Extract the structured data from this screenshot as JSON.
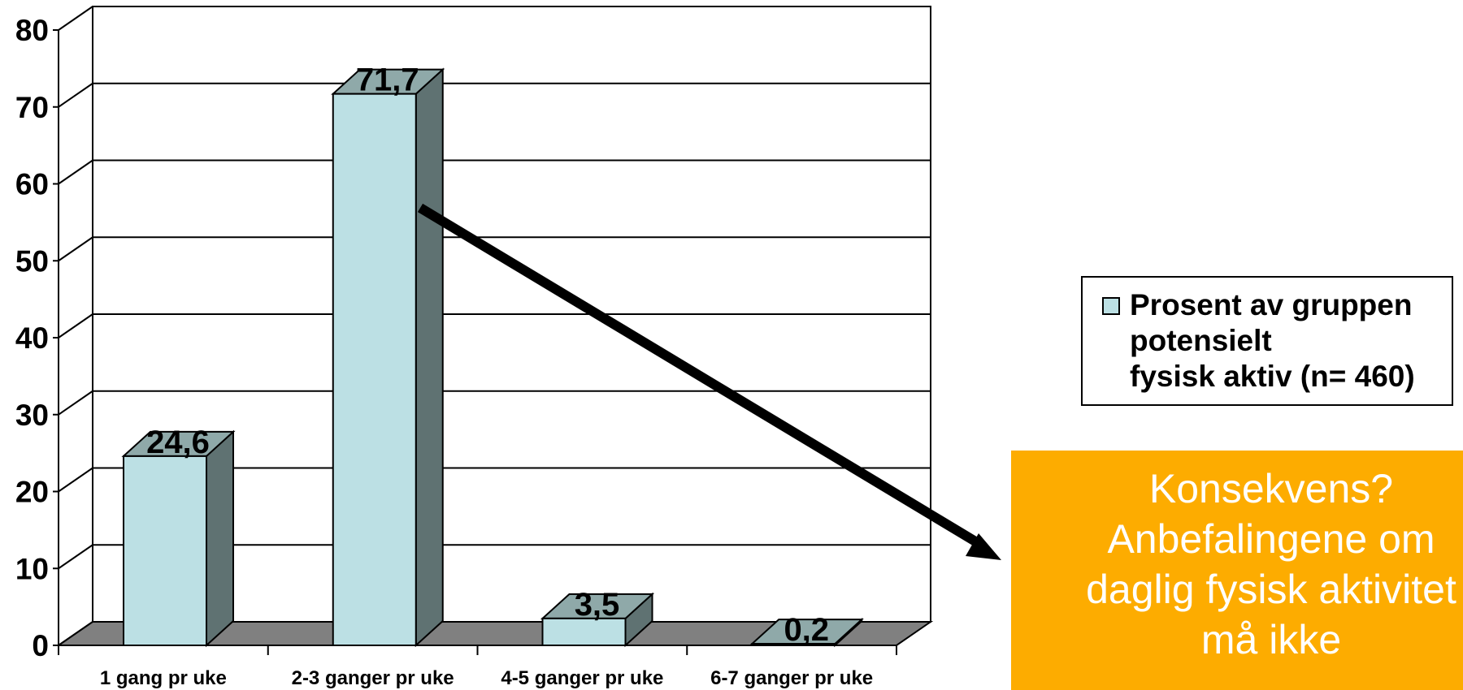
{
  "chart_data": {
    "type": "bar",
    "categories": [
      "1 gang pr uke",
      "2-3 ganger pr uke",
      "4-5 ganger pr uke",
      "6-7 ganger pr uke"
    ],
    "series": [
      {
        "name": "Prosent av gruppen potensielt fysisk aktiv (n= 460)",
        "values": [
          24.6,
          71.7,
          3.5,
          0.2
        ]
      }
    ],
    "data_labels": [
      "24,6",
      "71,7",
      "3,5",
      "0,2"
    ],
    "y_ticks": [
      "0",
      "10",
      "20",
      "30",
      "40",
      "50",
      "60",
      "70",
      "80"
    ],
    "ylim": [
      0,
      80
    ],
    "grid": true,
    "legend_position": "right",
    "style": "3d-column",
    "colors": {
      "bar_front": "#bce0e4",
      "bar_side": "#5f7272",
      "bar_top": "#8fa9a9",
      "floor": "#808080"
    }
  },
  "legend": {
    "text": "Prosent av gruppen\npotensielt\nfysisk aktiv (n= 460)"
  },
  "callout": {
    "text": "Konsekvens?\nAnbefalingene om\ndaglig fysisk aktivitet\nmå ikke",
    "background": "#fdac00"
  }
}
